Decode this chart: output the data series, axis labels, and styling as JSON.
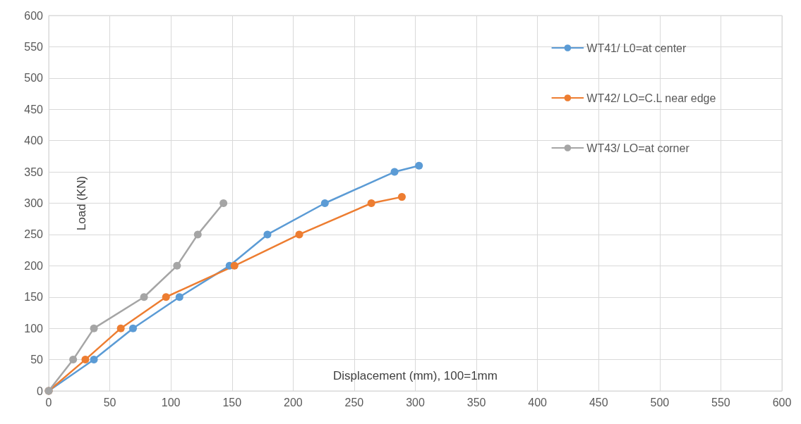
{
  "chart_data": {
    "type": "line",
    "xlabel": "Displacement (mm), 100=1mm",
    "ylabel": "Load (KN)",
    "series": [
      {
        "name": "WT41/ L0=at center",
        "color": "#5b9bd5",
        "x": [
          0,
          37,
          69,
          107,
          148,
          179,
          226,
          283,
          303
        ],
        "values": [
          0,
          50,
          100,
          150,
          200,
          250,
          300,
          350,
          360
        ]
      },
      {
        "name": "WT42/ LO=C.L near edge",
        "color": "#ed7d31",
        "x": [
          0,
          30,
          59,
          96,
          152,
          205,
          264,
          289
        ],
        "values": [
          0,
          50,
          100,
          150,
          200,
          250,
          300,
          310
        ]
      },
      {
        "name": "WT43/ LO=at corner",
        "color": "#a5a5a5",
        "x": [
          0,
          20,
          37,
          78,
          105,
          122,
          143
        ],
        "values": [
          0,
          50,
          100,
          150,
          200,
          250,
          300
        ]
      }
    ],
    "xlim": [
      0,
      600
    ],
    "xticks": [
      0,
      50,
      100,
      150,
      200,
      250,
      300,
      350,
      400,
      450,
      500,
      550,
      600
    ],
    "ylim": [
      0,
      600
    ],
    "yticks": [
      0,
      50,
      100,
      150,
      200,
      250,
      300,
      350,
      400,
      450,
      500,
      550,
      600
    ],
    "grid": true,
    "legend": "right",
    "marker": "circle",
    "line_style": "solid"
  }
}
